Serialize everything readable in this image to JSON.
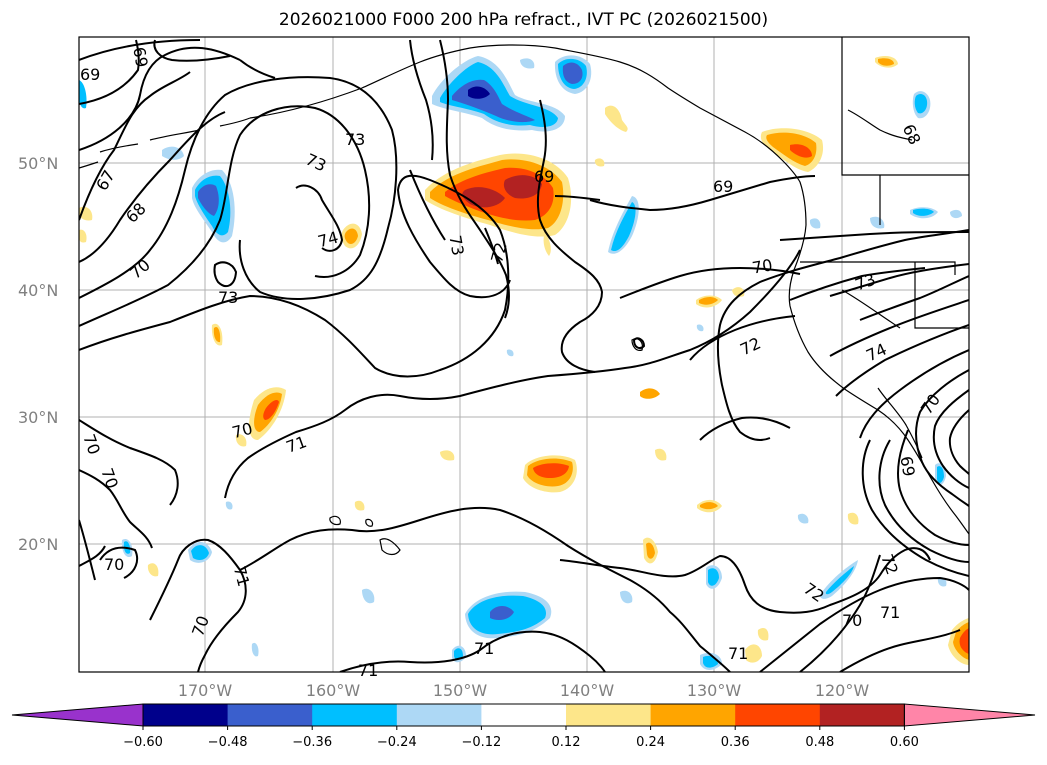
{
  "title": "2026021000 F000 200 hPa refract., IVT PC (2026021500)",
  "lat_labels": [
    "50°N",
    "40°N",
    "30°N",
    "20°N"
  ],
  "lon_labels": [
    "170°W",
    "160°W",
    "150°W",
    "140°W",
    "130°W",
    "120°W"
  ],
  "colorbar": {
    "ticks": [
      "−0.60",
      "−0.48",
      "−0.36",
      "−0.24",
      "−0.12",
      "0.12",
      "0.24",
      "0.36",
      "0.48",
      "0.60"
    ],
    "colors": [
      "#9932cc",
      "#00008b",
      "#3a5fcd",
      "#00bfff",
      "#add8f5",
      "#ffffff",
      "#fde68a",
      "#ffa500",
      "#ff4500",
      "#b22222",
      "#ff85a8"
    ]
  },
  "contour_labels": {
    "c69a": "69",
    "c69b": "69",
    "c67": "67",
    "c68a": "68",
    "c70a": "70",
    "c73a": "73",
    "c73b": "73",
    "c74a": "74",
    "c73c": "73",
    "c73d": "73",
    "c72a": "72",
    "c69c": "69",
    "c69d": "69",
    "c68b": "68",
    "c70b": "70",
    "c73e": "73",
    "c72b": "72",
    "c74b": "74",
    "c70c": "70",
    "c69e": "69",
    "c70d": "70",
    "c71a": "71",
    "c70e": "70",
    "c70f": "70",
    "c70g": "70",
    "c71b": "71",
    "c70h": "70",
    "c71c": "71",
    "c71d": "71",
    "c71e": "71",
    "c72c": "72",
    "c70i": "70",
    "c71f": "71",
    "c72d": "72"
  }
}
